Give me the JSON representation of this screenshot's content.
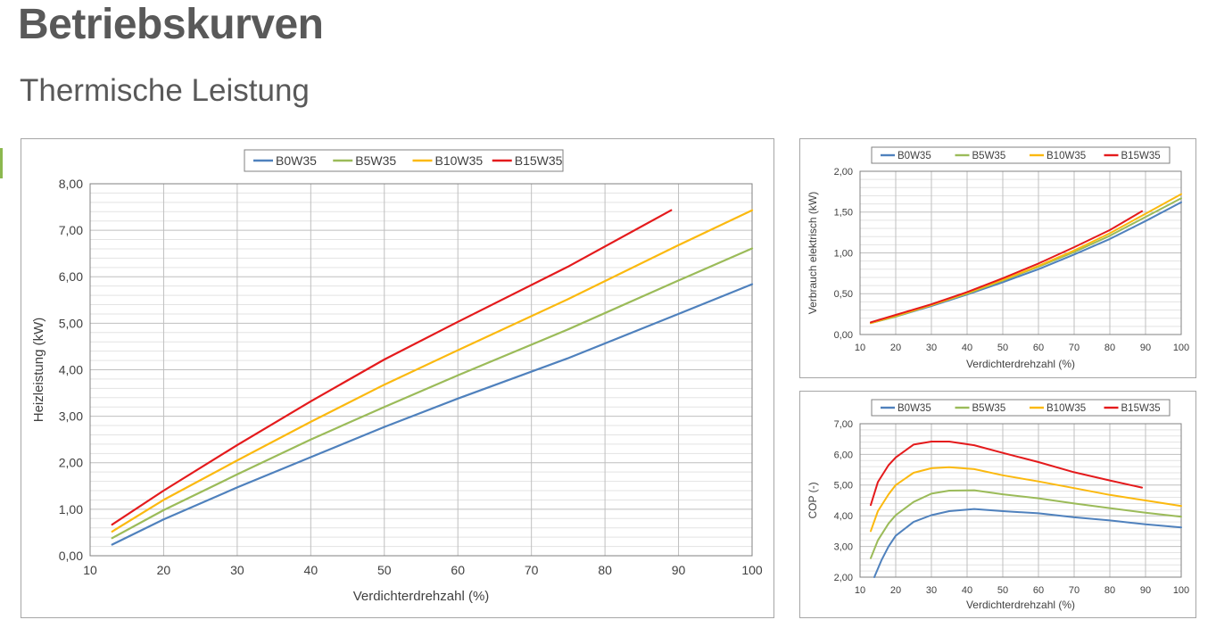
{
  "page": {
    "title": "Betriebskurven",
    "subtitle": "Thermische Leistung"
  },
  "colors": {
    "B0W35": "#4f81bd",
    "B5W35": "#9bbb59",
    "B10W35": "#fbb90f",
    "B15W35": "#e41a1c",
    "accent": "#8cb84f"
  },
  "chart_data": [
    {
      "type": "line",
      "xlabel": "Verdichterdrehzahl (%)",
      "ylabel": "Heizleistung (kW)",
      "xlim": [
        10,
        100
      ],
      "ylim": [
        0,
        8
      ],
      "xticks": [
        "10",
        "20",
        "30",
        "40",
        "50",
        "60",
        "70",
        "80",
        "90",
        "100"
      ],
      "yticks": [
        "0,00",
        "1,00",
        "2,00",
        "3,00",
        "4,00",
        "5,00",
        "6,00",
        "7,00",
        "8,00"
      ],
      "grid": true,
      "legend": "top",
      "series": [
        {
          "name": "B0W35",
          "x": [
            13,
            20,
            30,
            40,
            50,
            60,
            75,
            90,
            100
          ],
          "y": [
            0.24,
            0.78,
            1.47,
            2.12,
            2.77,
            3.38,
            4.25,
            5.2,
            5.84
          ]
        },
        {
          "name": "B5W35",
          "x": [
            13,
            20,
            30,
            40,
            50,
            60,
            75,
            90,
            100
          ],
          "y": [
            0.38,
            0.98,
            1.75,
            2.5,
            3.2,
            3.88,
            4.87,
            5.92,
            6.61
          ]
        },
        {
          "name": "B10W35",
          "x": [
            13,
            20,
            30,
            40,
            50,
            60,
            75,
            90,
            100
          ],
          "y": [
            0.52,
            1.2,
            2.05,
            2.88,
            3.68,
            4.42,
            5.52,
            6.68,
            7.43
          ]
        },
        {
          "name": "B15W35",
          "x": [
            13,
            20,
            30,
            40,
            50,
            60,
            75,
            89
          ],
          "y": [
            0.67,
            1.4,
            2.38,
            3.32,
            4.22,
            5.03,
            6.22,
            7.43
          ]
        }
      ]
    },
    {
      "type": "line",
      "xlabel": "Verdichterdrehzahl (%)",
      "ylabel": "Verbrauch elektrisch (kW)",
      "xlim": [
        10,
        100
      ],
      "ylim": [
        0,
        2
      ],
      "xticks": [
        "10",
        "20",
        "30",
        "40",
        "50",
        "60",
        "70",
        "80",
        "90",
        "100"
      ],
      "yticks": [
        "0,00",
        "0,50",
        "1,00",
        "1,50",
        "2,00"
      ],
      "grid": true,
      "legend": "top",
      "series": [
        {
          "name": "B0W35",
          "x": [
            13,
            20,
            30,
            40,
            50,
            60,
            70,
            80,
            90,
            100
          ],
          "y": [
            0.14,
            0.22,
            0.35,
            0.49,
            0.64,
            0.8,
            0.98,
            1.17,
            1.39,
            1.62
          ]
        },
        {
          "name": "B5W35",
          "x": [
            13,
            20,
            30,
            40,
            50,
            60,
            70,
            80,
            90,
            100
          ],
          "y": [
            0.14,
            0.22,
            0.36,
            0.5,
            0.66,
            0.83,
            1.01,
            1.21,
            1.44,
            1.67
          ]
        },
        {
          "name": "B10W35",
          "x": [
            13,
            20,
            30,
            40,
            50,
            60,
            70,
            80,
            90,
            100
          ],
          "y": [
            0.14,
            0.23,
            0.36,
            0.51,
            0.67,
            0.84,
            1.03,
            1.24,
            1.48,
            1.72
          ]
        },
        {
          "name": "B15W35",
          "x": [
            13,
            20,
            30,
            40,
            50,
            60,
            70,
            80,
            89
          ],
          "y": [
            0.15,
            0.24,
            0.37,
            0.52,
            0.69,
            0.87,
            1.07,
            1.28,
            1.51
          ]
        }
      ]
    },
    {
      "type": "line",
      "xlabel": "Verdichterdrehzahl (%)",
      "ylabel": "COP (-)",
      "xlim": [
        10,
        100
      ],
      "ylim": [
        2,
        7
      ],
      "xticks": [
        "10",
        "20",
        "30",
        "40",
        "50",
        "60",
        "70",
        "80",
        "90",
        "100"
      ],
      "yticks": [
        "2,00",
        "3,00",
        "4,00",
        "5,00",
        "6,00",
        "7,00"
      ],
      "grid": true,
      "legend": "top",
      "series": [
        {
          "name": "B0W35",
          "x": [
            14,
            16,
            18,
            20,
            25,
            30,
            35,
            42,
            50,
            60,
            70,
            80,
            90,
            100
          ],
          "y": [
            2.0,
            2.55,
            3.0,
            3.35,
            3.8,
            4.02,
            4.15,
            4.22,
            4.15,
            4.08,
            3.95,
            3.85,
            3.72,
            3.62
          ]
        },
        {
          "name": "B5W35",
          "x": [
            13,
            15,
            18,
            20,
            25,
            30,
            35,
            42,
            50,
            60,
            70,
            80,
            90,
            100
          ],
          "y": [
            2.62,
            3.2,
            3.75,
            4.02,
            4.45,
            4.72,
            4.82,
            4.83,
            4.7,
            4.57,
            4.4,
            4.25,
            4.1,
            3.97
          ]
        },
        {
          "name": "B10W35",
          "x": [
            13,
            15,
            18,
            20,
            25,
            30,
            35,
            42,
            50,
            60,
            70,
            80,
            90,
            100
          ],
          "y": [
            3.5,
            4.15,
            4.7,
            5.0,
            5.4,
            5.55,
            5.58,
            5.52,
            5.32,
            5.12,
            4.9,
            4.68,
            4.5,
            4.32
          ]
        },
        {
          "name": "B15W35",
          "x": [
            13,
            15,
            18,
            20,
            25,
            30,
            35,
            42,
            50,
            60,
            70,
            80,
            89
          ],
          "y": [
            4.35,
            5.1,
            5.65,
            5.9,
            6.32,
            6.42,
            6.42,
            6.3,
            6.05,
            5.75,
            5.42,
            5.15,
            4.92
          ]
        }
      ]
    }
  ]
}
